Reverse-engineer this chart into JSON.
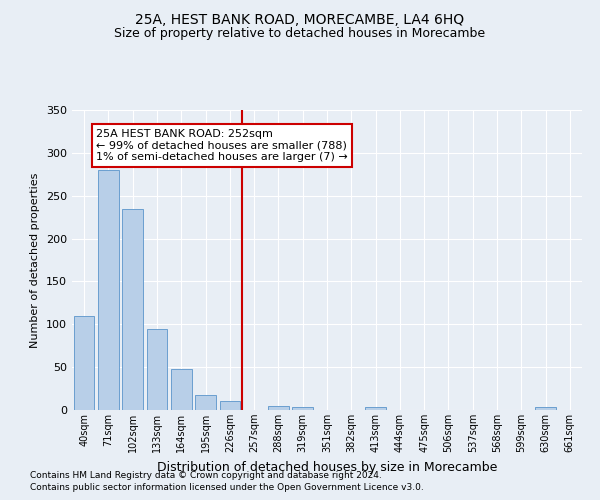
{
  "title": "25A, HEST BANK ROAD, MORECAMBE, LA4 6HQ",
  "subtitle": "Size of property relative to detached houses in Morecambe",
  "xlabel": "Distribution of detached houses by size in Morecambe",
  "ylabel": "Number of detached properties",
  "categories": [
    "40sqm",
    "71sqm",
    "102sqm",
    "133sqm",
    "164sqm",
    "195sqm",
    "226sqm",
    "257sqm",
    "288sqm",
    "319sqm",
    "351sqm",
    "382sqm",
    "413sqm",
    "444sqm",
    "475sqm",
    "506sqm",
    "537sqm",
    "568sqm",
    "599sqm",
    "630sqm",
    "661sqm"
  ],
  "values": [
    110,
    280,
    235,
    95,
    48,
    17,
    11,
    0,
    5,
    3,
    0,
    0,
    3,
    0,
    0,
    0,
    0,
    0,
    0,
    3,
    0
  ],
  "bar_color": "#b8cfe8",
  "bar_edge_color": "#6a9fd0",
  "background_color": "#e8eef5",
  "grid_color": "#ffffff",
  "property_line_x": 6.5,
  "property_line_color": "#cc0000",
  "annotation_text": "25A HEST BANK ROAD: 252sqm\n← 99% of detached houses are smaller (788)\n1% of semi-detached houses are larger (7) →",
  "annotation_box_facecolor": "#ffffff",
  "annotation_box_edgecolor": "#cc0000",
  "ylim": [
    0,
    350
  ],
  "yticks": [
    0,
    50,
    100,
    150,
    200,
    250,
    300,
    350
  ],
  "title_fontsize": 10,
  "subtitle_fontsize": 9,
  "xlabel_fontsize": 9,
  "ylabel_fontsize": 8,
  "tick_fontsize": 8,
  "xtick_fontsize": 7,
  "annotation_fontsize": 8,
  "footnote_fontsize": 6.5,
  "footnote1": "Contains HM Land Registry data © Crown copyright and database right 2024.",
  "footnote2": "Contains public sector information licensed under the Open Government Licence v3.0."
}
